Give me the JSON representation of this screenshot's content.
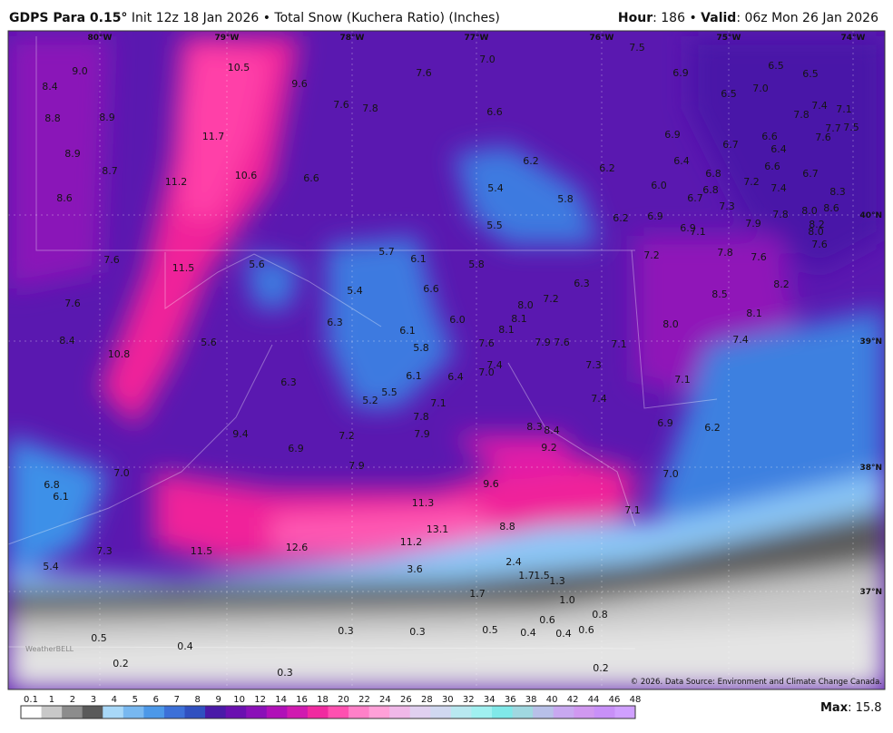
{
  "header": {
    "model": "GDPS Para 0.15°",
    "description": "Init 12z 18 Jan 2026 • Total Snow (Kuchera Ratio) (Inches)",
    "hour_label": "Hour",
    "hour_value": ": 186 •",
    "valid_label": "Valid",
    "valid_value": ": 06z Mon 26 Jan 2026"
  },
  "map": {
    "longitudes": [
      "80°W",
      "79°W",
      "78°W",
      "77°W",
      "76°W",
      "75°W",
      "74°W"
    ],
    "latitudes": [
      "40°N",
      "39°N",
      "38°N",
      "37°N"
    ],
    "labels": [
      "9.0",
      "8.4",
      "10.5",
      "9.6",
      "7.6",
      "7.0",
      "7.5",
      "6.9",
      "6.5",
      "6.5",
      "8.8",
      "8.9",
      "7.6",
      "7.8",
      "6.6",
      "6.5",
      "7.0",
      "7.8",
      "7.4",
      "7.1",
      "11.7",
      "6.9",
      "6.6",
      "6.7",
      "6.4",
      "7.6",
      "7.7",
      "7.5",
      "8.9",
      "8.7",
      "10.6",
      "11.2",
      "6.6",
      "6.2",
      "6.2",
      "6.4",
      "6.8",
      "6.6",
      "6.7",
      "8.6",
      "5.4",
      "5.8",
      "6.0",
      "6.8",
      "6.7",
      "7.2",
      "7.4",
      "8.3",
      "7.3",
      "8.0",
      "8.6",
      "5.5",
      "6.2",
      "6.9",
      "6.9",
      "7.1",
      "7.9",
      "7.8",
      "8.2",
      "8.0",
      "7.6",
      "7.6",
      "11.5",
      "5.6",
      "5.7",
      "6.1",
      "5.8",
      "7.2",
      "7.8",
      "7.6",
      "5.4",
      "6.6",
      "6.3",
      "7.2",
      "8.0",
      "8.5",
      "8.2",
      "7.6",
      "6.3",
      "6.0",
      "8.1",
      "8.1",
      "8.0",
      "6.1",
      "8.1",
      "8.4",
      "5.6",
      "5.8",
      "7.6",
      "7.9",
      "7.6",
      "7.1",
      "7.4",
      "10.8",
      "7.4",
      "7.3",
      "7.0",
      "6.1",
      "6.4",
      "6.3",
      "5.5",
      "7.1",
      "5.2",
      "7.1",
      "7.4",
      "7.8",
      "6.9",
      "8.3",
      "8.4",
      "6.2",
      "9.4",
      "7.9",
      "7.2",
      "9.2",
      "6.9",
      "7.0",
      "7.9",
      "7.0",
      "6.8",
      "9.6",
      "6.1",
      "11.3",
      "7.1",
      "13.1",
      "8.8",
      "11.2",
      "12.6",
      "7.3",
      "11.5",
      "5.4",
      "3.6",
      "2.4",
      "1.7",
      "1.5",
      "1.3",
      "1.7",
      "1.0",
      "0.8",
      "0.6",
      "0.6",
      "0.3",
      "0.3",
      "0.5",
      "0.4",
      "0.4",
      "0.5",
      "0.4",
      "0.2",
      "0.3",
      "0.2"
    ],
    "credit": "© 2026. Data Source: Environment and Climate Change Canada.",
    "logo": "WeatherBELL"
  },
  "legend": {
    "levels": [
      "0.1",
      "1",
      "2",
      "3",
      "4",
      "5",
      "6",
      "7",
      "8",
      "9",
      "10",
      "12",
      "14",
      "16",
      "18",
      "20",
      "22",
      "24",
      "26",
      "28",
      "30",
      "32",
      "34",
      "36",
      "38",
      "40",
      "42",
      "44",
      "46",
      "48"
    ],
    "colors": [
      "#ffffff",
      "#c8c8c8",
      "#8c8c8c",
      "#5a5a5a",
      "#a8d8f8",
      "#78b8f0",
      "#4c98e8",
      "#3c70d8",
      "#3050c0",
      "#4a1aa8",
      "#6a10b0",
      "#8a10b8",
      "#b010b8",
      "#d01ab0",
      "#f02aa0",
      "#ff50b0",
      "#ff80c8",
      "#ffa0d8",
      "#f0b8e8",
      "#e0d0f0",
      "#d0d8f0",
      "#b8e8f0",
      "#a0f0f0",
      "#80e8e8",
      "#a0d8e0",
      "#b8c0e8",
      "#c8a8f0",
      "#d098f0",
      "#c890f8",
      "#d0a0ff"
    ],
    "max_label": "Max",
    "max_value": ": 15.8"
  }
}
